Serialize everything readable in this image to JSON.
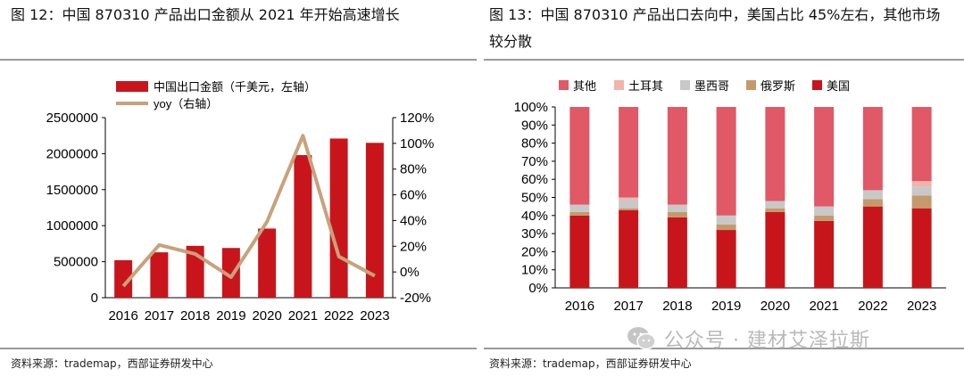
{
  "left": {
    "title": "图 12：中国 870310 产品出口金额从 2021 年开始高速增长",
    "source": "资料来源：trademap，西部证券研发中心",
    "chart_data": {
      "type": "bar",
      "categories": [
        "2016",
        "2017",
        "2018",
        "2019",
        "2020",
        "2021",
        "2022",
        "2023"
      ],
      "series": [
        {
          "name": "中国出口金额（千美元，左轴）",
          "kind": "bar",
          "axis": "left",
          "color": "#c8151b",
          "values": [
            520000,
            630000,
            720000,
            690000,
            960000,
            1980000,
            2210000,
            2150000
          ]
        },
        {
          "name": "yoy（右轴）",
          "kind": "line",
          "axis": "right",
          "color": "#c7a27c",
          "values": [
            -0.11,
            0.21,
            0.14,
            -0.04,
            0.39,
            1.06,
            0.12,
            -0.03
          ]
        }
      ],
      "y_left": {
        "min": 0,
        "max": 2500000,
        "ticks": [
          0,
          500000,
          1000000,
          1500000,
          2000000,
          2500000
        ]
      },
      "y_right": {
        "min": -0.2,
        "max": 1.2,
        "tick_labels": [
          "-20%",
          "0%",
          "20%",
          "40%",
          "60%",
          "80%",
          "100%",
          "120%"
        ],
        "ticks": [
          -0.2,
          0,
          0.2,
          0.4,
          0.6,
          0.8,
          1.0,
          1.2
        ]
      },
      "legend": [
        "中国出口金额（千美元，左轴）",
        "yoy（右轴）"
      ],
      "legend_position": "top-left"
    }
  },
  "right": {
    "title": "图 13：中国 870310 产品出口去向中，美国占比 45%左右，其他市场较分散",
    "source": "资料来源：trademap，西部证券研发中心",
    "chart_data": {
      "type": "bar",
      "stacked": true,
      "categories": [
        "2016",
        "2017",
        "2018",
        "2019",
        "2020",
        "2021",
        "2022",
        "2023"
      ],
      "series": [
        {
          "name": "美国",
          "color": "#c8151b",
          "values": [
            40,
            43,
            39,
            32,
            42,
            37,
            45,
            44
          ]
        },
        {
          "name": "俄罗斯",
          "color": "#c49a6c",
          "values": [
            2,
            1,
            3,
            3,
            2,
            3,
            4,
            7
          ]
        },
        {
          "name": "墨西哥",
          "color": "#c8c8c8",
          "values": [
            4,
            5,
            4,
            5,
            4,
            5,
            5,
            5
          ]
        },
        {
          "name": "土耳其",
          "color": "#f0b4aa",
          "values": [
            0,
            1,
            0,
            0,
            0,
            0,
            0,
            3
          ]
        },
        {
          "name": "其他",
          "color": "#e15866",
          "values": [
            54,
            50,
            54,
            60,
            52,
            55,
            46,
            41
          ]
        }
      ],
      "legend_order": [
        "其他",
        "土耳其",
        "墨西哥",
        "俄罗斯",
        "美国"
      ],
      "y_axis": {
        "min": 0,
        "max": 100,
        "tick_labels": [
          "0%",
          "10%",
          "20%",
          "30%",
          "40%",
          "50%",
          "60%",
          "70%",
          "80%",
          "90%",
          "100%"
        ]
      },
      "legend_position": "top"
    }
  },
  "watermark": "公众号 · 建材艾泽拉斯"
}
